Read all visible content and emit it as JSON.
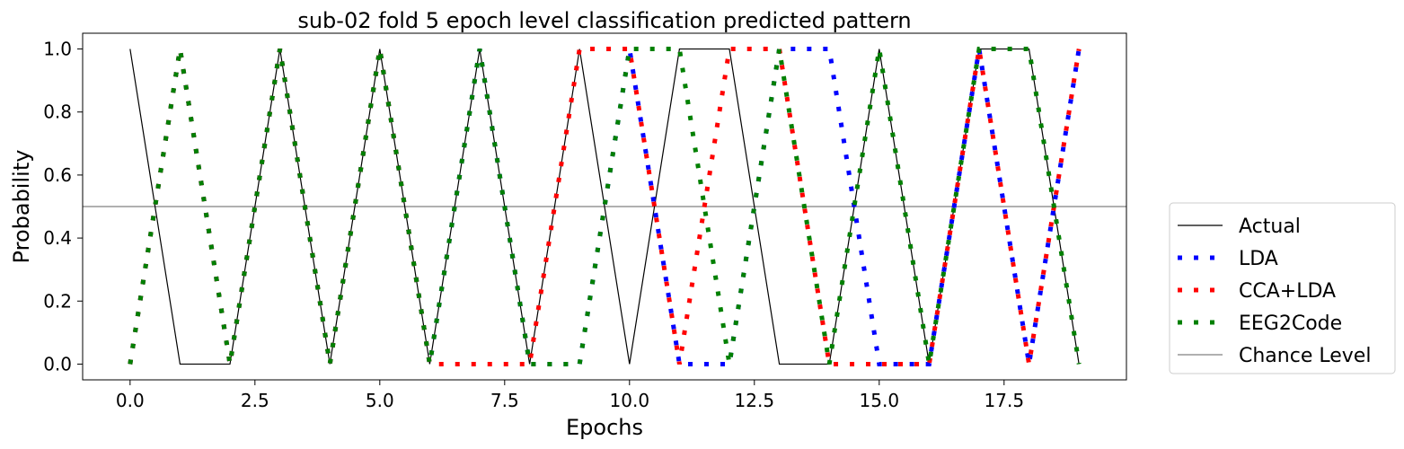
{
  "chart_data": {
    "type": "line",
    "title": "sub-02 fold 5 epoch level classification predicted pattern",
    "xlabel": "Epochs",
    "ylabel": "Probability",
    "xlim": [
      -0.95,
      19.95
    ],
    "ylim": [
      -0.05,
      1.05
    ],
    "xticks": [
      0.0,
      2.5,
      5.0,
      7.5,
      10.0,
      12.5,
      15.0,
      17.5
    ],
    "xtick_labels": [
      "0.0",
      "2.5",
      "5.0",
      "7.5",
      "10.0",
      "12.5",
      "15.0",
      "17.5"
    ],
    "yticks": [
      0.0,
      0.2,
      0.4,
      0.6,
      0.8,
      1.0
    ],
    "ytick_labels": [
      "0.0",
      "0.2",
      "0.4",
      "0.6",
      "0.8",
      "1.0"
    ],
    "grid": false,
    "legend_position": "outside-right",
    "x": [
      0,
      1,
      2,
      3,
      4,
      5,
      6,
      7,
      8,
      9,
      10,
      11,
      12,
      13,
      14,
      15,
      16,
      17,
      18,
      19
    ],
    "series": [
      {
        "name": "Actual",
        "style": "solid",
        "color": "#000000",
        "values": [
          1,
          0,
          0,
          1,
          0,
          1,
          0,
          1,
          0,
          1,
          0,
          1,
          1,
          0,
          0,
          1,
          0,
          1,
          1,
          0
        ]
      },
      {
        "name": "LDA",
        "style": "dotted",
        "color": "#0000ff",
        "values": [
          0,
          1,
          0,
          1,
          0,
          1,
          0,
          1,
          0,
          0,
          1,
          0,
          0,
          1,
          1,
          0,
          0,
          1,
          0,
          1
        ]
      },
      {
        "name": "CCA+LDA",
        "style": "dotted",
        "color": "#ff0000",
        "values": [
          0,
          1,
          0,
          1,
          0,
          1,
          0,
          0,
          0,
          1,
          1,
          0,
          1,
          1,
          0,
          0,
          0,
          1,
          0,
          1
        ]
      },
      {
        "name": "EEG2Code",
        "style": "dotted",
        "color": "#008000",
        "values": [
          0,
          1,
          0,
          1,
          0,
          1,
          0,
          1,
          0,
          0,
          1,
          1,
          0,
          1,
          0,
          1,
          0,
          1,
          1,
          0
        ]
      }
    ],
    "reference_lines": [
      {
        "name": "Chance Level",
        "y": 0.5,
        "color": "#808080"
      }
    ]
  }
}
